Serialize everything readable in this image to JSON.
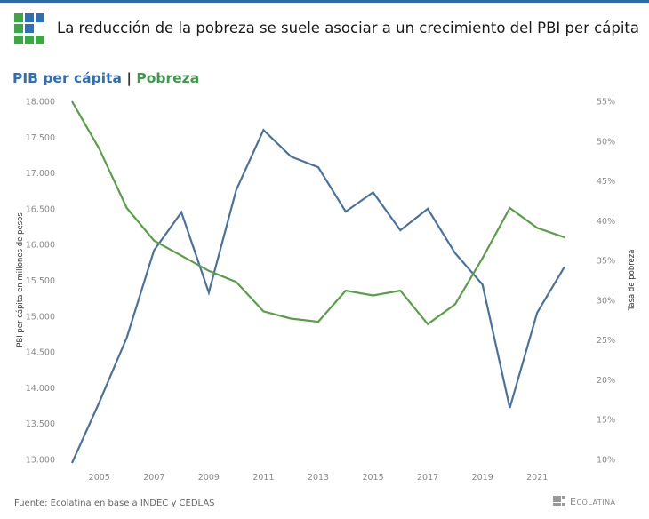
{
  "header": {
    "title": "La reducción de la pobreza se suele asociar a un crecimiento del PBI per cápita",
    "logo_colors": [
      "#3aa845",
      "#2f6fb5",
      "#2f6fb5",
      "#3aa845",
      "#2f6fb5",
      "#3aa845",
      "#3aa845",
      "#3aa845"
    ]
  },
  "legend": {
    "series1": "PIB per cápita",
    "separator": "|",
    "series2": "Pobreza"
  },
  "chart_data": {
    "type": "line",
    "title": "La reducción de la pobreza se suele asociar a un crecimiento del PBI per cápita",
    "x": [
      2004,
      2005,
      2006,
      2007,
      2008,
      2009,
      2010,
      2011,
      2012,
      2013,
      2014,
      2015,
      2016,
      2017,
      2018,
      2019,
      2020,
      2021,
      2022
    ],
    "xticks": [
      "2005",
      "2007",
      "2009",
      "2011",
      "2013",
      "2015",
      "2017",
      "2019",
      "2021"
    ],
    "xtick_values": [
      2005,
      2007,
      2009,
      2011,
      2013,
      2015,
      2017,
      2019,
      2021
    ],
    "xlim": [
      2004,
      2022
    ],
    "ylabel": "PBI per cápita en millones de pesos",
    "ylim": [
      13000,
      18000
    ],
    "yticks": [
      "18.000",
      "17.500",
      "17.000",
      "16.500",
      "16.000",
      "15.500",
      "15.000",
      "14.500",
      "14.000",
      "13.500",
      "13.000"
    ],
    "ytick_values": [
      18000,
      17500,
      17000,
      16500,
      16000,
      15500,
      15000,
      14500,
      14000,
      13500,
      13000
    ],
    "y2label": "Tasa de pobreza",
    "y2lim": [
      10,
      55
    ],
    "y2ticks": [
      "55%",
      "50%",
      "45%",
      "40%",
      "35%",
      "30%",
      "25%",
      "20%",
      "15%",
      "10%"
    ],
    "y2tick_values": [
      55,
      50,
      45,
      40,
      35,
      30,
      25,
      20,
      15,
      10
    ],
    "grid": false,
    "series": [
      {
        "name": "PIB per cápita",
        "axis": "left",
        "color": "#4a72a0",
        "values": [
          12950,
          13800,
          14700,
          15920,
          16450,
          15330,
          16760,
          17600,
          17230,
          17080,
          16460,
          16730,
          16200,
          16500,
          15880,
          15440,
          13720,
          15050,
          15690
        ]
      },
      {
        "name": "Pobreza",
        "axis": "right",
        "color": "#5a9e48",
        "values": [
          55.0,
          49.0,
          41.6,
          37.5,
          35.6,
          33.7,
          32.3,
          28.6,
          27.7,
          27.3,
          31.2,
          30.6,
          31.2,
          27.0,
          29.5,
          35.3,
          41.6,
          39.1,
          37.9
        ]
      }
    ]
  },
  "footer": {
    "source": "Fuente: Ecolatina en base a INDEC y CEDLAS",
    "brand": "Ecolatina"
  },
  "colors": {
    "blue": "#2f6fb5",
    "green": "#3d9a4a",
    "topbar": "#2b6aa6"
  }
}
